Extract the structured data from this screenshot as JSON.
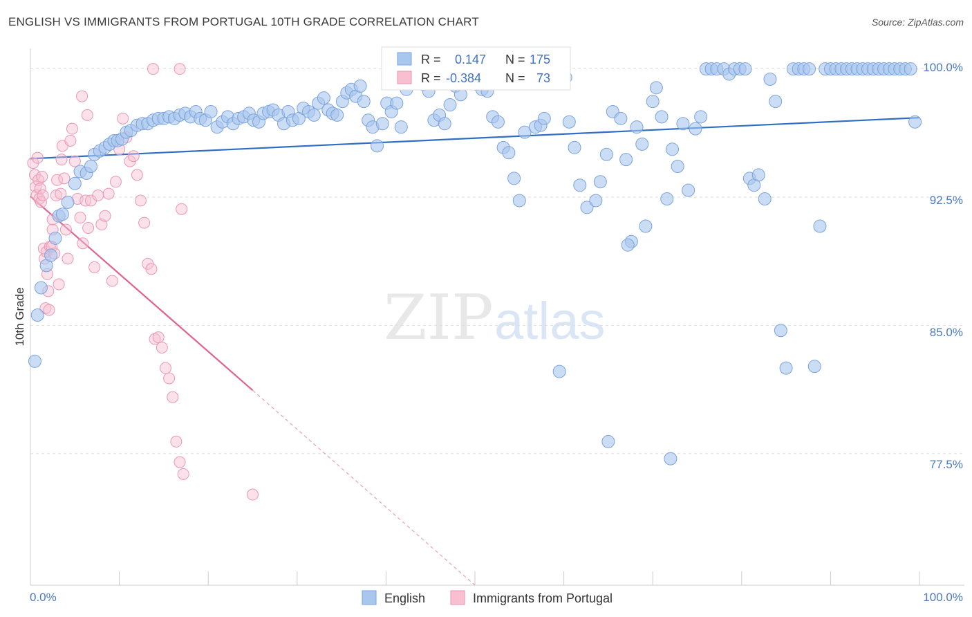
{
  "header": {
    "title": "ENGLISH VS IMMIGRANTS FROM PORTUGAL 10TH GRADE CORRELATION CHART",
    "source": "Source: ZipAtlas.com"
  },
  "watermark": {
    "zip": "ZIP",
    "atlas": "atlas"
  },
  "stats": {
    "english": {
      "r_label": "R =",
      "r_value": "0.147",
      "n_label": "N =",
      "n_value": "175"
    },
    "portugal": {
      "r_label": "R =",
      "r_value": "-0.384",
      "n_label": "N =",
      "n_value": "73"
    }
  },
  "colors": {
    "english_fill": "#a9c6ef",
    "english_stroke": "#7aa3dd",
    "english_line": "#2f6ec4",
    "portugal_fill": "#f7bfd0",
    "portugal_stroke": "#ec96b3",
    "portugal_line": "#e0628f",
    "tick_label": "#4a78c2",
    "grid": "#dddddd"
  },
  "chart_data": {
    "type": "scatter",
    "ylabel": "10th Grade",
    "xlabel": "",
    "x_tick_labels": {
      "left": "0.0%",
      "right": "100.0%"
    },
    "y_tick_labels": [
      "100.0%",
      "92.5%",
      "85.0%",
      "77.5%"
    ],
    "y_tick_values": [
      100.0,
      92.5,
      85.0,
      77.5
    ],
    "xlim": [
      0,
      100
    ],
    "ylim": [
      69.8,
      101.2
    ],
    "grid": true,
    "legend": {
      "position": "bottom",
      "items": [
        "English",
        "Immigrants from Portugal"
      ]
    },
    "series": [
      {
        "name": "English",
        "trend": {
          "x": [
            0,
            100
          ],
          "y": [
            94.75,
            97.15
          ]
        },
        "points": [
          [
            0.5,
            82.9
          ],
          [
            0.8,
            85.6
          ],
          [
            1.2,
            87.2
          ],
          [
            1.8,
            88.5
          ],
          [
            2.3,
            89.1
          ],
          [
            2.8,
            90.1
          ],
          [
            3.2,
            91.4
          ],
          [
            3.6,
            91.5
          ],
          [
            4.2,
            92.2
          ],
          [
            5.0,
            93.3
          ],
          [
            5.6,
            94.0
          ],
          [
            6.3,
            93.9
          ],
          [
            6.8,
            94.3
          ],
          [
            7.2,
            95.0
          ],
          [
            7.8,
            95.2
          ],
          [
            8.4,
            95.4
          ],
          [
            8.9,
            95.6
          ],
          [
            9.4,
            95.8
          ],
          [
            9.8,
            95.8
          ],
          [
            10.3,
            95.9
          ],
          [
            10.8,
            96.3
          ],
          [
            11.3,
            96.4
          ],
          [
            12.0,
            96.7
          ],
          [
            12.6,
            96.8
          ],
          [
            13.2,
            96.8
          ],
          [
            13.8,
            97.0
          ],
          [
            14.4,
            97.1
          ],
          [
            15.0,
            97.1
          ],
          [
            15.6,
            97.2
          ],
          [
            16.2,
            97.1
          ],
          [
            16.8,
            97.3
          ],
          [
            17.4,
            97.4
          ],
          [
            18.0,
            97.2
          ],
          [
            18.6,
            97.5
          ],
          [
            19.1,
            97.1
          ],
          [
            19.7,
            97.0
          ],
          [
            20.3,
            97.5
          ],
          [
            21.0,
            96.6
          ],
          [
            21.6,
            96.9
          ],
          [
            22.2,
            97.2
          ],
          [
            22.8,
            96.8
          ],
          [
            23.4,
            97.1
          ],
          [
            24.0,
            97.2
          ],
          [
            24.6,
            97.4
          ],
          [
            25.1,
            97.0
          ],
          [
            25.7,
            96.9
          ],
          [
            26.2,
            97.4
          ],
          [
            26.8,
            97.5
          ],
          [
            27.3,
            97.6
          ],
          [
            27.9,
            97.3
          ],
          [
            28.5,
            96.8
          ],
          [
            29.0,
            97.5
          ],
          [
            29.5,
            97.0
          ],
          [
            30.2,
            97.1
          ],
          [
            30.7,
            97.7
          ],
          [
            31.3,
            97.5
          ],
          [
            31.9,
            97.3
          ],
          [
            32.4,
            98.0
          ],
          [
            33.0,
            98.3
          ],
          [
            33.5,
            97.6
          ],
          [
            34.0,
            97.4
          ],
          [
            34.5,
            97.3
          ],
          [
            35.1,
            98.1
          ],
          [
            35.6,
            98.6
          ],
          [
            36.1,
            98.8
          ],
          [
            36.6,
            98.4
          ],
          [
            37.1,
            99.0
          ],
          [
            37.5,
            98.1
          ],
          [
            38.0,
            97.0
          ],
          [
            38.5,
            96.6
          ],
          [
            39.0,
            95.5
          ],
          [
            39.6,
            96.8
          ],
          [
            40.1,
            98.0
          ],
          [
            40.6,
            97.5
          ],
          [
            41.2,
            98.0
          ],
          [
            41.7,
            96.6
          ],
          [
            42.3,
            98.8
          ],
          [
            43.0,
            99.5
          ],
          [
            43.6,
            99.7
          ],
          [
            44.2,
            99.1
          ],
          [
            44.8,
            98.7
          ],
          [
            45.4,
            97.0
          ],
          [
            46.0,
            97.3
          ],
          [
            46.6,
            96.8
          ],
          [
            47.2,
            97.9
          ],
          [
            47.8,
            99.0
          ],
          [
            48.4,
            98.5
          ],
          [
            49.0,
            99.3
          ],
          [
            49.6,
            99.6
          ],
          [
            50.2,
            99.1
          ],
          [
            50.8,
            98.8
          ],
          [
            51.4,
            98.7
          ],
          [
            52.0,
            97.2
          ],
          [
            52.6,
            96.9
          ],
          [
            53.2,
            95.4
          ],
          [
            53.8,
            95.1
          ],
          [
            54.4,
            93.6
          ],
          [
            55.0,
            92.3
          ],
          [
            55.6,
            96.3
          ],
          [
            56.2,
            99.5
          ],
          [
            56.8,
            96.6
          ],
          [
            57.4,
            96.7
          ],
          [
            57.8,
            97.1
          ],
          [
            58.4,
            99.8
          ],
          [
            59.0,
            100.0
          ],
          [
            59.6,
            100.0
          ],
          [
            60.2,
            99.5
          ],
          [
            60.6,
            96.9
          ],
          [
            61.2,
            95.4
          ],
          [
            61.8,
            93.2
          ],
          [
            62.6,
            91.9
          ],
          [
            63.6,
            92.3
          ],
          [
            64.1,
            93.4
          ],
          [
            64.8,
            95.0
          ],
          [
            65.5,
            97.5
          ],
          [
            66.4,
            97.1
          ],
          [
            67.0,
            94.7
          ],
          [
            67.6,
            89.9
          ],
          [
            68.2,
            96.6
          ],
          [
            68.8,
            95.6
          ],
          [
            69.2,
            90.8
          ],
          [
            70.0,
            98.1
          ],
          [
            70.4,
            98.9
          ],
          [
            71.0,
            97.2
          ],
          [
            71.6,
            92.4
          ],
          [
            72.2,
            95.3
          ],
          [
            72.8,
            94.3
          ],
          [
            73.4,
            96.8
          ],
          [
            74.0,
            92.9
          ],
          [
            74.8,
            96.5
          ],
          [
            75.4,
            97.2
          ],
          [
            76.0,
            100.0
          ],
          [
            76.6,
            100.0
          ],
          [
            77.2,
            100.0
          ],
          [
            78.0,
            100.0
          ],
          [
            78.6,
            99.7
          ],
          [
            79.2,
            100.0
          ],
          [
            79.8,
            100.0
          ],
          [
            80.4,
            100.0
          ],
          [
            80.9,
            93.6
          ],
          [
            81.4,
            93.2
          ],
          [
            81.9,
            93.8
          ],
          [
            82.6,
            92.4
          ],
          [
            83.2,
            99.4
          ],
          [
            83.8,
            98.1
          ],
          [
            84.4,
            84.7
          ],
          [
            85.0,
            82.5
          ],
          [
            85.8,
            100.0
          ],
          [
            86.4,
            100.0
          ],
          [
            87.0,
            100.0
          ],
          [
            87.6,
            100.0
          ],
          [
            88.2,
            82.6
          ],
          [
            88.8,
            90.8
          ],
          [
            89.4,
            100.0
          ],
          [
            90.0,
            100.0
          ],
          [
            90.6,
            100.0
          ],
          [
            91.2,
            100.0
          ],
          [
            91.8,
            100.0
          ],
          [
            92.4,
            100.0
          ],
          [
            93.0,
            100.0
          ],
          [
            93.6,
            100.0
          ],
          [
            94.2,
            100.0
          ],
          [
            94.8,
            100.0
          ],
          [
            95.4,
            100.0
          ],
          [
            96.0,
            100.0
          ],
          [
            96.6,
            100.0
          ],
          [
            97.2,
            100.0
          ],
          [
            97.8,
            100.0
          ],
          [
            98.4,
            100.0
          ],
          [
            99.0,
            100.0
          ],
          [
            99.5,
            96.9
          ],
          [
            65.0,
            78.2
          ],
          [
            72.0,
            77.2
          ],
          [
            67.2,
            89.7
          ],
          [
            59.5,
            82.3
          ]
        ]
      },
      {
        "name": "Immigrants from Portugal",
        "trend": {
          "x": [
            0,
            25
          ],
          "y": [
            92.55,
            81.2
          ]
        },
        "trend_dashed": {
          "x": [
            25,
            50
          ],
          "y": [
            81.2,
            69.8
          ]
        },
        "points": [
          [
            0.3,
            94.5
          ],
          [
            0.5,
            93.8
          ],
          [
            0.6,
            93.1
          ],
          [
            0.7,
            92.6
          ],
          [
            0.8,
            94.8
          ],
          [
            0.9,
            93.5
          ],
          [
            1.0,
            92.4
          ],
          [
            1.1,
            93.0
          ],
          [
            1.2,
            92.2
          ],
          [
            1.4,
            92.6
          ],
          [
            1.5,
            89.5
          ],
          [
            1.6,
            88.9
          ],
          [
            1.7,
            86.0
          ],
          [
            1.8,
            89.3
          ],
          [
            1.9,
            88.0
          ],
          [
            2.0,
            87.0
          ],
          [
            2.1,
            85.9
          ],
          [
            2.2,
            89.6
          ],
          [
            2.4,
            89.6
          ],
          [
            2.5,
            90.6
          ],
          [
            2.7,
            89.2
          ],
          [
            2.9,
            92.6
          ],
          [
            3.0,
            93.5
          ],
          [
            3.2,
            87.4
          ],
          [
            3.4,
            92.7
          ],
          [
            3.5,
            94.7
          ],
          [
            3.6,
            95.5
          ],
          [
            3.8,
            93.6
          ],
          [
            4.0,
            90.6
          ],
          [
            4.2,
            88.9
          ],
          [
            4.5,
            95.8
          ],
          [
            4.7,
            96.5
          ],
          [
            5.0,
            94.6
          ],
          [
            5.3,
            92.4
          ],
          [
            5.6,
            91.3
          ],
          [
            5.9,
            89.8
          ],
          [
            6.2,
            92.3
          ],
          [
            6.5,
            90.7
          ],
          [
            6.8,
            92.3
          ],
          [
            7.2,
            88.4
          ],
          [
            7.6,
            92.6
          ],
          [
            8.0,
            90.9
          ],
          [
            8.4,
            91.4
          ],
          [
            8.8,
            92.7
          ],
          [
            9.2,
            87.6
          ],
          [
            9.6,
            93.4
          ],
          [
            10.0,
            95.3
          ],
          [
            10.4,
            97.1
          ],
          [
            10.8,
            96.0
          ],
          [
            11.2,
            94.6
          ],
          [
            11.6,
            94.9
          ],
          [
            12.0,
            93.8
          ],
          [
            12.4,
            92.3
          ],
          [
            12.8,
            91.0
          ],
          [
            13.2,
            88.6
          ],
          [
            13.6,
            88.3
          ],
          [
            14.0,
            84.2
          ],
          [
            14.4,
            84.3
          ],
          [
            14.8,
            83.7
          ],
          [
            15.2,
            82.5
          ],
          [
            15.6,
            81.9
          ],
          [
            16.0,
            80.8
          ],
          [
            16.4,
            78.2
          ],
          [
            16.8,
            77.0
          ],
          [
            17.2,
            76.3
          ],
          [
            5.8,
            98.4
          ],
          [
            6.4,
            97.3
          ],
          [
            13.8,
            100.0
          ],
          [
            16.8,
            100.0
          ],
          [
            17.0,
            91.8
          ],
          [
            25.0,
            75.1
          ],
          [
            2.5,
            91.2
          ],
          [
            1.3,
            93.7
          ]
        ]
      }
    ]
  }
}
